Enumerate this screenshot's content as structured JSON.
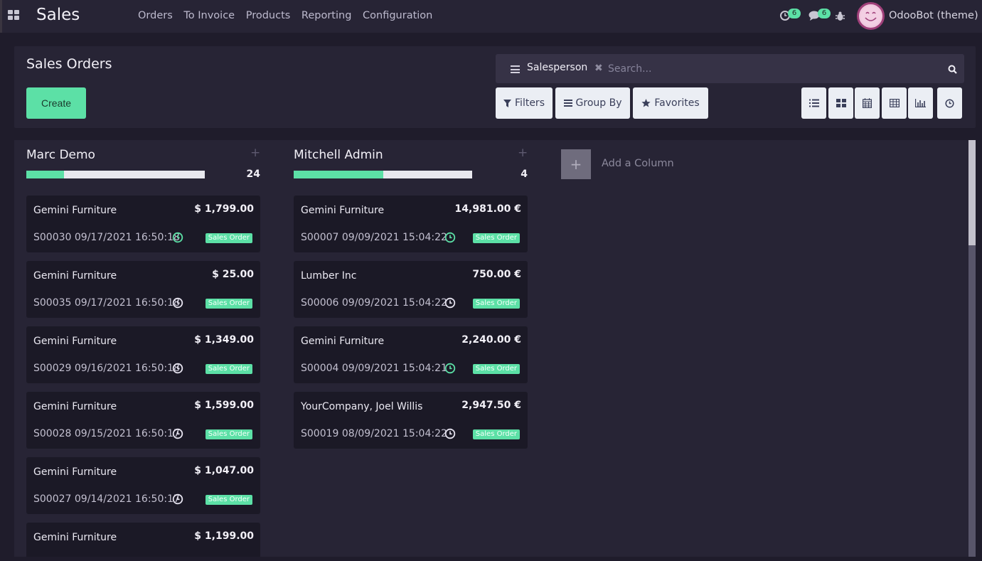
{
  "navbar": {
    "app_title": "Sales",
    "menu": [
      "Orders",
      "To Invoice",
      "Products",
      "Reporting",
      "Configuration"
    ],
    "activity_count": "6",
    "messages_count": "6",
    "user_name": "OdooBot (theme)"
  },
  "control_panel": {
    "title": "Sales Orders",
    "create_label": "Create",
    "facet_label": "Salesperson",
    "search_placeholder": "Search...",
    "filters_label": "Filters",
    "group_by_label": "Group By",
    "favorites_label": "Favorites",
    "views": [
      "list-icon",
      "kanban-icon",
      "calendar-icon",
      "pivot-icon",
      "graph-icon",
      "activity-icon"
    ]
  },
  "colors": {
    "accent": "#5ce0a6",
    "background": "#1f1c2b",
    "panel": "#272435",
    "card": "#1b1926"
  },
  "kanban": {
    "columns": [
      {
        "title": "Marc Demo",
        "count": "24",
        "progress": 0.21,
        "cards": [
          {
            "customer": "Gemini Furniture",
            "amount": "$ 1,799.00",
            "ref": "S00030 09/17/2021 16:50:18",
            "tag": "Sales Order",
            "activity": "planned"
          },
          {
            "customer": "Gemini Furniture",
            "amount": "$ 25.00",
            "ref": "S00035 09/17/2021 16:50:18",
            "tag": "Sales Order",
            "activity": "none"
          },
          {
            "customer": "Gemini Furniture",
            "amount": "$ 1,349.00",
            "ref": "S00029 09/16/2021 16:50:18",
            "tag": "Sales Order",
            "activity": "none"
          },
          {
            "customer": "Gemini Furniture",
            "amount": "$ 1,599.00",
            "ref": "S00028 09/15/2021 16:50:17",
            "tag": "Sales Order",
            "activity": "none"
          },
          {
            "customer": "Gemini Furniture",
            "amount": "$ 1,047.00",
            "ref": "S00027 09/14/2021 16:50:17",
            "tag": "Sales Order",
            "activity": "none"
          },
          {
            "customer": "Gemini Furniture",
            "amount": "$ 1,199.00",
            "ref": "",
            "tag": "",
            "activity": "none"
          }
        ]
      },
      {
        "title": "Mitchell Admin",
        "count": "4",
        "progress": 0.5,
        "cards": [
          {
            "customer": "Gemini Furniture",
            "amount": "14,981.00 €",
            "ref": "S00007 09/09/2021 15:04:22",
            "tag": "Sales Order",
            "activity": "planned"
          },
          {
            "customer": "Lumber Inc",
            "amount": "750.00 €",
            "ref": "S00006 09/09/2021 15:04:22",
            "tag": "Sales Order",
            "activity": "none"
          },
          {
            "customer": "Gemini Furniture",
            "amount": "2,240.00 €",
            "ref": "S00004 09/09/2021 15:04:21",
            "tag": "Sales Order",
            "activity": "planned"
          },
          {
            "customer": "YourCompany, Joel Willis",
            "amount": "2,947.50 €",
            "ref": "S00019 08/09/2021 15:04:22",
            "tag": "Sales Order",
            "activity": "none"
          }
        ]
      }
    ],
    "add_column_label": "Add a Column"
  }
}
